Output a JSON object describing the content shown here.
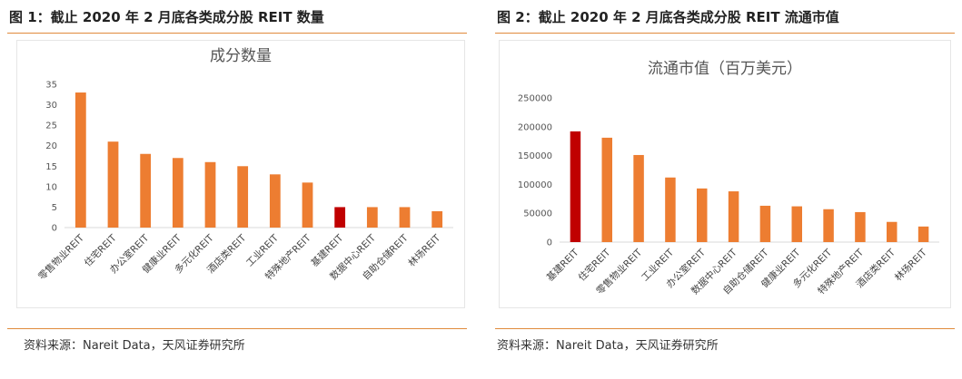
{
  "figures": [
    {
      "title": "图 1：截止 2020 年 2 月底各类成分股 REIT 数量",
      "source": "资料来源：Nareit Data，天风证券研究所"
    },
    {
      "title": "图 2：截止 2020 年 2 月底各类成分股 REIT 流通市值",
      "source": "资料来源：Nareit Data，天风证券研究所"
    }
  ],
  "colors": {
    "bar": "#ED7D31",
    "highlight": "#C00000",
    "rule": "#E08A3C"
  },
  "chart_data": [
    {
      "type": "bar",
      "title": "成分数量",
      "categories": [
        "零售物业REIT",
        "住宅REIT",
        "办公室REIT",
        "健康业REIT",
        "多元化REIT",
        "酒店类REIT",
        "工业REIT",
        "特殊地产REIT",
        "基建REIT",
        "数据中心REIT",
        "自助仓储REIT",
        "林场REIT"
      ],
      "values": [
        33,
        21,
        18,
        17,
        16,
        15,
        13,
        11,
        5,
        5,
        5,
        4
      ],
      "highlight_index": 8,
      "ylim": [
        0,
        35
      ],
      "yticks": [
        0,
        5,
        10,
        15,
        20,
        25,
        30,
        35
      ],
      "grid": false,
      "legend": "none"
    },
    {
      "type": "bar",
      "title": "流通市值（百万美元）",
      "categories": [
        "基建REIT",
        "住宅REIT",
        "零售物业REIT",
        "工业REIT",
        "办公室REIT",
        "数据中心REIT",
        "自助仓储REIT",
        "健康业REIT",
        "多元化REIT",
        "特殊地产REIT",
        "酒店类REIT",
        "林场REIT"
      ],
      "values": [
        192000,
        181000,
        151000,
        112000,
        93000,
        88000,
        63000,
        62000,
        57000,
        52000,
        35000,
        27000
      ],
      "highlight_index": 0,
      "ylim": [
        0,
        250000
      ],
      "yticks": [
        0,
        50000,
        100000,
        150000,
        200000,
        250000
      ],
      "grid": false,
      "legend": "none"
    }
  ]
}
